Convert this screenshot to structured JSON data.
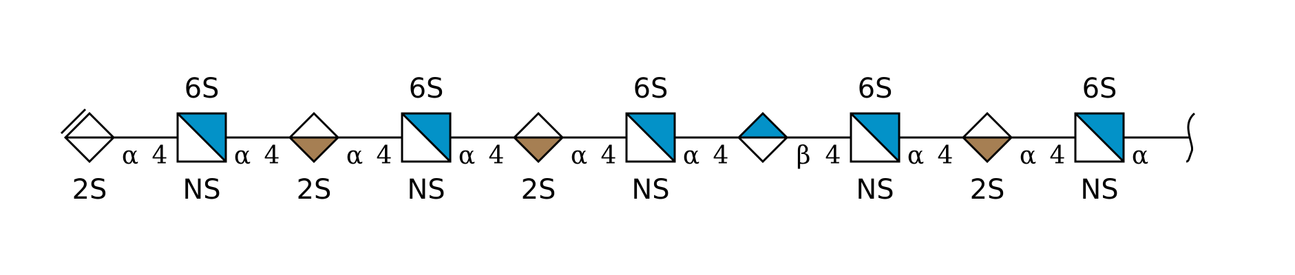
{
  "colors": {
    "blue": "#0392C8",
    "brown": "#A67F53",
    "outline": "#000000",
    "background": "#FFFFFF"
  },
  "residues": [
    {
      "shape": "diamond-split",
      "fill": "none",
      "top_label": "",
      "bottom_label": "2S",
      "unsaturated": true,
      "link": [
        "α",
        "4"
      ]
    },
    {
      "shape": "square-diag",
      "fill": "blue",
      "top_label": "6S",
      "bottom_label": "NS",
      "link": [
        "α",
        "4"
      ]
    },
    {
      "shape": "diamond-split",
      "fill": "brown-bottom",
      "top_label": "",
      "bottom_label": "2S",
      "link": [
        "α",
        "4"
      ]
    },
    {
      "shape": "square-diag",
      "fill": "blue",
      "top_label": "6S",
      "bottom_label": "NS",
      "link": [
        "α",
        "4"
      ]
    },
    {
      "shape": "diamond-split",
      "fill": "brown-bottom",
      "top_label": "",
      "bottom_label": "2S",
      "link": [
        "α",
        "4"
      ]
    },
    {
      "shape": "square-diag",
      "fill": "blue",
      "top_label": "6S",
      "bottom_label": "NS",
      "link": [
        "α",
        "4"
      ]
    },
    {
      "shape": "diamond-split",
      "fill": "blue-top",
      "top_label": "",
      "bottom_label": "",
      "link": [
        "β",
        "4"
      ]
    },
    {
      "shape": "square-diag",
      "fill": "blue",
      "top_label": "6S",
      "bottom_label": "NS",
      "link": [
        "α",
        "4"
      ]
    },
    {
      "shape": "diamond-split",
      "fill": "brown-bottom",
      "top_label": "",
      "bottom_label": "2S",
      "link": [
        "α",
        "4"
      ]
    },
    {
      "shape": "square-diag",
      "fill": "blue",
      "top_label": "6S",
      "bottom_label": "NS",
      "link": [
        "α",
        ""
      ]
    }
  ],
  "reducing_end": "bracket"
}
